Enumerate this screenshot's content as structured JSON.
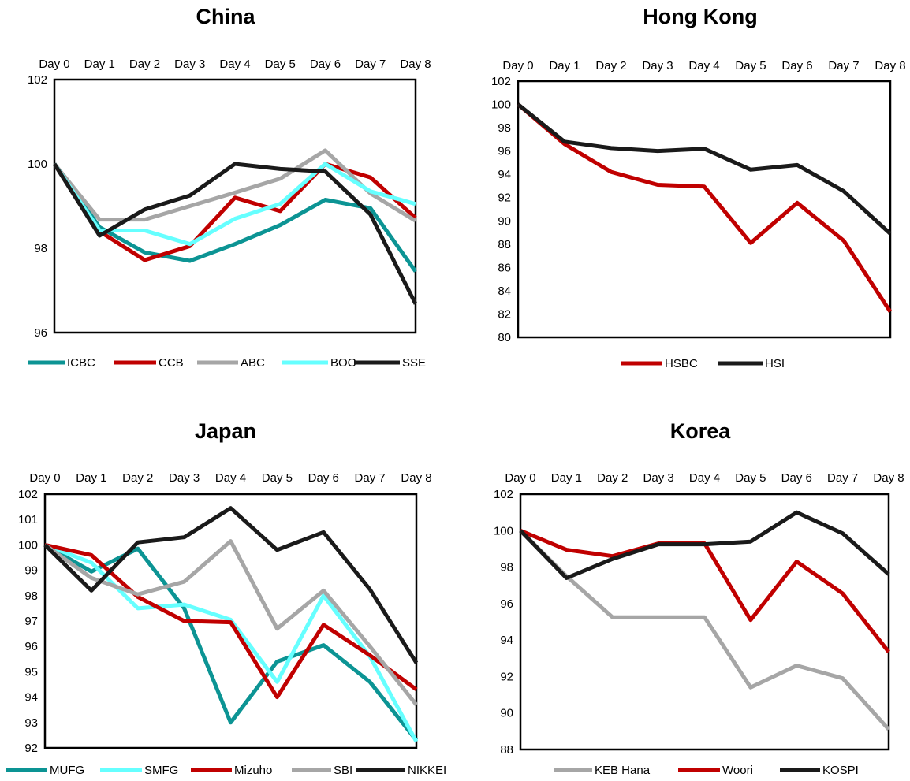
{
  "chart_data": [
    {
      "type": "line",
      "title": "China",
      "categories": [
        "Day 0",
        "Day 1",
        "Day 2",
        "Day 3",
        "Day 4",
        "Day 5",
        "Day 6",
        "Day 7",
        "Day 8"
      ],
      "ylim": [
        96,
        102
      ],
      "yticks": [
        "96",
        "98",
        "100",
        "102"
      ],
      "ytick_values": [
        96,
        98,
        100,
        102
      ],
      "x_axis_position": "top",
      "grid": false,
      "legend": "bottom",
      "series": [
        {
          "name": "ICBC",
          "color": "#0c9494",
          "values": [
            100,
            98.5,
            97.9,
            97.7,
            98.1,
            98.55,
            99.15,
            98.95,
            97.45
          ]
        },
        {
          "name": "CCB",
          "color": "#c00000",
          "values": [
            100,
            98.4,
            97.72,
            98.05,
            99.2,
            98.88,
            100.0,
            99.68,
            98.72
          ]
        },
        {
          "name": "ABC",
          "color": "#a6a6a6",
          "values": [
            100,
            98.68,
            98.68,
            99.0,
            99.32,
            99.65,
            100.32,
            99.3,
            98.65
          ]
        },
        {
          "name": "BOC",
          "color": "#66ffff",
          "values": [
            100,
            98.42,
            98.42,
            98.1,
            98.7,
            99.05,
            100.0,
            99.35,
            99.05
          ]
        },
        {
          "name": "SSE",
          "color": "#1a1a1a",
          "values": [
            100,
            98.3,
            98.92,
            99.25,
            100.0,
            99.88,
            99.82,
            98.8,
            96.68
          ]
        }
      ]
    },
    {
      "type": "line",
      "title": "Hong Kong",
      "categories": [
        "Day 0",
        "Day 1",
        "Day 2",
        "Day 3",
        "Day 4",
        "Day 5",
        "Day 6",
        "Day 7",
        "Day 8"
      ],
      "ylim": [
        80,
        102
      ],
      "yticks": [
        "80",
        "82",
        "84",
        "86",
        "88",
        "90",
        "92",
        "94",
        "96",
        "98",
        "100",
        "102"
      ],
      "ytick_values": [
        80,
        82,
        84,
        86,
        88,
        90,
        92,
        94,
        96,
        98,
        100,
        102
      ],
      "x_axis_position": "top",
      "grid": false,
      "legend": "bottom",
      "series": [
        {
          "name": "HSBC",
          "color": "#c00000",
          "values": [
            100,
            96.6,
            94.2,
            93.1,
            92.95,
            88.1,
            91.55,
            88.3,
            82.2
          ]
        },
        {
          "name": "HSI",
          "color": "#1a1a1a",
          "values": [
            100,
            96.8,
            96.25,
            96.0,
            96.2,
            94.4,
            94.8,
            92.55,
            88.9
          ]
        }
      ]
    },
    {
      "type": "line",
      "title": "Japan",
      "categories": [
        "Day 0",
        "Day 1",
        "Day 2",
        "Day 3",
        "Day 4",
        "Day 5",
        "Day 6",
        "Day 7",
        "Day 8"
      ],
      "ylim": [
        92,
        102
      ],
      "yticks": [
        "92",
        "93",
        "94",
        "95",
        "96",
        "97",
        "98",
        "99",
        "100",
        "101",
        "102"
      ],
      "ytick_values": [
        92,
        93,
        94,
        95,
        96,
        97,
        98,
        99,
        100,
        101,
        102
      ],
      "x_axis_position": "top",
      "grid": false,
      "legend": "bottom",
      "series": [
        {
          "name": "MUFG",
          "color": "#0c9494",
          "values": [
            100,
            98.95,
            99.85,
            97.5,
            93.0,
            95.4,
            96.05,
            94.6,
            92.3
          ]
        },
        {
          "name": "SMFG",
          "color": "#66ffff",
          "values": [
            100,
            99.3,
            97.5,
            97.65,
            97.05,
            94.6,
            98.0,
            95.6,
            92.25
          ]
        },
        {
          "name": "Mizuho",
          "color": "#c00000",
          "values": [
            100,
            99.6,
            97.95,
            97.0,
            96.95,
            94.0,
            96.85,
            95.65,
            94.3
          ]
        },
        {
          "name": "SBI",
          "color": "#a6a6a6",
          "values": [
            100,
            98.7,
            98.05,
            98.55,
            100.15,
            96.7,
            98.2,
            96.0,
            93.7
          ]
        },
        {
          "name": "NIKKEI",
          "color": "#1a1a1a",
          "values": [
            100,
            98.2,
            100.1,
            100.3,
            101.45,
            99.8,
            100.5,
            98.25,
            95.35
          ]
        }
      ]
    },
    {
      "type": "line",
      "title": "Korea",
      "categories": [
        "Day 0",
        "Day 1",
        "Day 2",
        "Day 3",
        "Day 4",
        "Day 5",
        "Day 6",
        "Day 7",
        "Day 8"
      ],
      "ylim": [
        88,
        102
      ],
      "yticks": [
        "88",
        "90",
        "92",
        "94",
        "96",
        "98",
        "100",
        "102"
      ],
      "ytick_values": [
        88,
        90,
        92,
        94,
        96,
        98,
        100,
        102
      ],
      "x_axis_position": "top",
      "grid": false,
      "legend": "bottom",
      "series": [
        {
          "name": "KEB Hana",
          "color": "#a6a6a6",
          "values": [
            100,
            97.5,
            95.25,
            95.25,
            95.25,
            91.4,
            92.6,
            91.9,
            89.1
          ]
        },
        {
          "name": "Woori",
          "color": "#c00000",
          "values": [
            100,
            98.95,
            98.6,
            99.3,
            99.3,
            95.1,
            98.3,
            96.55,
            93.35
          ]
        },
        {
          "name": "KOSPI",
          "color": "#1a1a1a",
          "values": [
            100,
            97.4,
            98.45,
            99.25,
            99.25,
            99.4,
            101.0,
            99.85,
            97.6
          ]
        }
      ]
    }
  ]
}
